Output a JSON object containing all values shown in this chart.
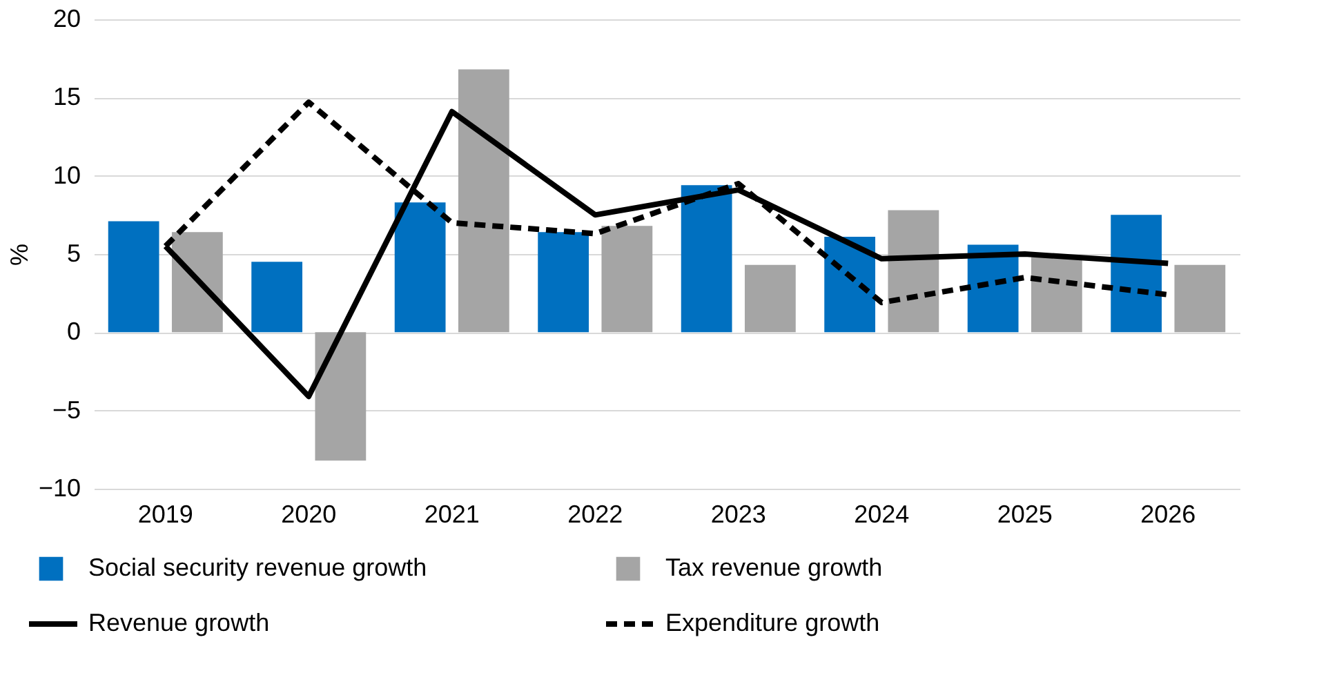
{
  "chart_data": {
    "type": "bar",
    "ylabel": "%",
    "categories": [
      "2019",
      "2020",
      "2021",
      "2022",
      "2023",
      "2024",
      "2025",
      "2026"
    ],
    "series": [
      {
        "name": "Social security revenue growth",
        "type": "bar",
        "color": "#0070c0",
        "values": [
          7.1,
          4.5,
          8.3,
          6.4,
          9.4,
          6.1,
          5.6,
          7.5
        ]
      },
      {
        "name": "Tax revenue growth",
        "type": "bar",
        "color": "#a5a5a5",
        "values": [
          6.4,
          -8.2,
          16.8,
          6.8,
          4.3,
          7.8,
          4.8,
          4.3
        ]
      },
      {
        "name": "Revenue growth",
        "type": "line",
        "color": "#000000",
        "line_style": "solid",
        "values": [
          5.5,
          -4.1,
          14.1,
          7.5,
          9.1,
          4.7,
          5.0,
          4.4
        ]
      },
      {
        "name": "Expenditure growth",
        "type": "line",
        "color": "#000000",
        "line_style": "dashed",
        "values": [
          5.5,
          14.7,
          7.0,
          6.3,
          9.5,
          1.9,
          3.5,
          2.4
        ]
      }
    ],
    "ylim": [
      -10,
      20
    ],
    "yticks": [
      -10,
      -5,
      0,
      5,
      10,
      15,
      20
    ],
    "grid": "y",
    "legend": "bottom"
  }
}
